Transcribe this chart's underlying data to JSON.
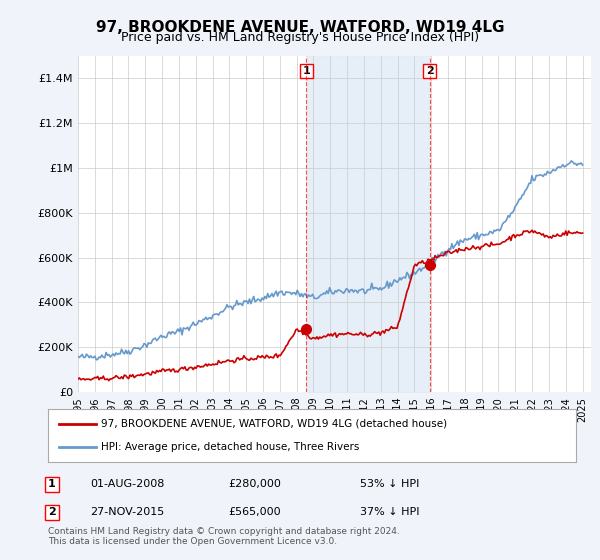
{
  "title": "97, BROOKDENE AVENUE, WATFORD, WD19 4LG",
  "subtitle": "Price paid vs. HM Land Registry's House Price Index (HPI)",
  "background_color": "#f0f4fa",
  "plot_bg_color": "#ffffff",
  "ylim": [
    0,
    1500000
  ],
  "yticks": [
    0,
    200000,
    400000,
    600000,
    800000,
    1000000,
    1200000,
    1400000
  ],
  "ytick_labels": [
    "£0",
    "£200K",
    "£400K",
    "£600K",
    "£800K",
    "£1M",
    "£1.2M",
    "£1.4M"
  ],
  "sale1_date": "01-AUG-2008",
  "sale1_price": 280000,
  "sale1_pct": "53%",
  "sale2_date": "27-NOV-2015",
  "sale2_price": 565000,
  "sale2_pct": "37%",
  "sale1_x": 2008.583,
  "sale2_x": 2015.9,
  "legend_label_red": "97, BROOKDENE AVENUE, WATFORD, WD19 4LG (detached house)",
  "legend_label_blue": "HPI: Average price, detached house, Three Rivers",
  "footer": "Contains HM Land Registry data © Crown copyright and database right 2024.\nThis data is licensed under the Open Government Licence v3.0.",
  "red_color": "#cc0000",
  "blue_color": "#6699cc",
  "shade_color": "#dce9f5",
  "hpi_data": {
    "years": [
      1995,
      1996,
      1997,
      1998,
      1999,
      2000,
      2001,
      2002,
      2003,
      2004,
      2005,
      2006,
      2007,
      2008,
      2009,
      2010,
      2011,
      2012,
      2013,
      2014,
      2015,
      2016,
      2017,
      2018,
      2019,
      2020,
      2021,
      2022,
      2023,
      2024
    ],
    "hpi_values": [
      155000,
      158000,
      168000,
      182000,
      210000,
      248000,
      270000,
      305000,
      340000,
      380000,
      400000,
      420000,
      445000,
      440000,
      420000,
      445000,
      455000,
      450000,
      460000,
      500000,
      530000,
      580000,
      640000,
      680000,
      700000,
      720000,
      820000,
      950000,
      980000,
      1020000
    ],
    "red_values": [
      55000,
      58000,
      62000,
      68000,
      80000,
      92000,
      100000,
      112000,
      125000,
      140000,
      148000,
      155000,
      162000,
      280000,
      240000,
      255000,
      260000,
      255000,
      265000,
      290000,
      565000,
      590000,
      620000,
      640000,
      650000,
      660000,
      700000,
      720000,
      690000,
      710000
    ]
  }
}
